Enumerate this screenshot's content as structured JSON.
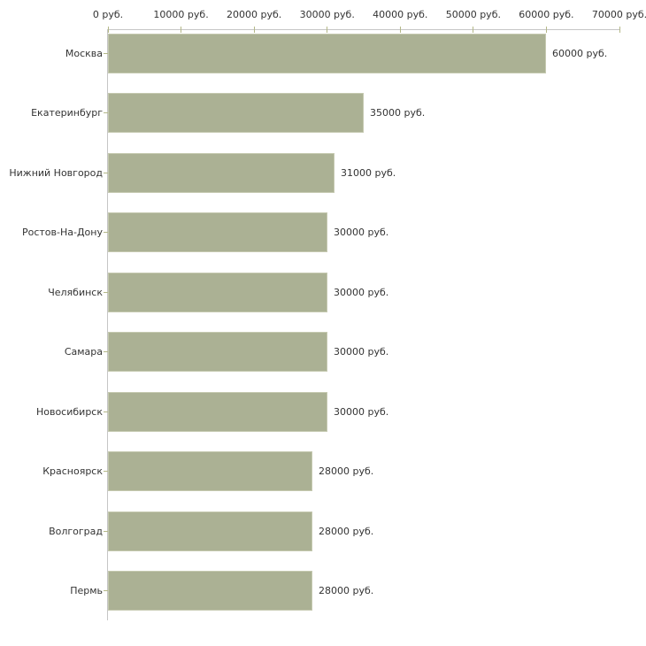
{
  "chart_data": {
    "type": "bar",
    "orientation": "horizontal",
    "title": "",
    "xlabel": "",
    "ylabel": "",
    "unit": "руб.",
    "xlim": [
      0,
      70000
    ],
    "axis_position": "top",
    "grid": false,
    "legend": false,
    "categories": [
      "Москва",
      "Екатеринбург",
      "Нижний Новгород",
      "Ростов-На-Дону",
      "Челябинск",
      "Самара",
      "Новосибирск",
      "Красноярск",
      "Волгоград",
      "Пермь"
    ],
    "values": [
      60000,
      35000,
      31000,
      30000,
      30000,
      30000,
      30000,
      28000,
      28000,
      28000
    ],
    "value_labels": [
      "60000 руб.",
      "35000 руб.",
      "31000 руб.",
      "30000 руб.",
      "30000 руб.",
      "30000 руб.",
      "30000 руб.",
      "28000 руб.",
      "28000 руб.",
      "28000 руб."
    ],
    "x_tick_values": [
      0,
      10000,
      20000,
      30000,
      40000,
      50000,
      60000,
      70000
    ],
    "x_tick_labels": [
      "0 руб.",
      "10000 руб.",
      "20000 руб.",
      "30000 руб.",
      "40000 руб.",
      "50000 руб.",
      "60000 руб.",
      "70000 руб."
    ],
    "colors": {
      "bar_fill": "#abb194",
      "bar_border": "#c5c9b0",
      "axis_line": "#c6c6c6",
      "tick_mark": "#b4b888",
      "text": "#333333",
      "background": "#ffffff"
    }
  }
}
